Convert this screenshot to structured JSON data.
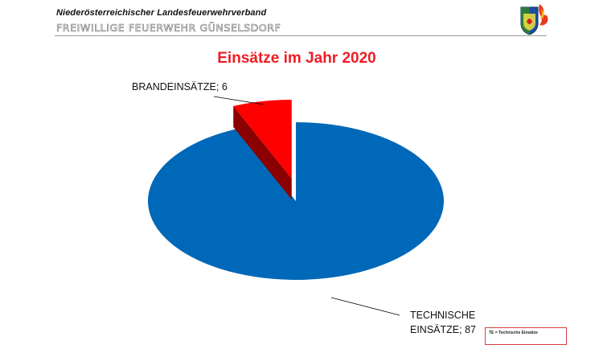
{
  "header": {
    "org_name": "Niederösterreichischer  Landesfeuerwehrverband",
    "dept_name": "Freiwillige Feuerwehr Günselsdorf"
  },
  "colors": {
    "technische": "#0068b8",
    "technische_side": "#063a68",
    "brand": "#ff0000",
    "brand_side": "#8b0000",
    "title": "#ee1c25"
  },
  "note": {
    "text": "TE = Technische  Einsätze"
  },
  "chart_data": {
    "type": "pie",
    "title": "Einsätze im Jahr 2020",
    "slices": [
      {
        "name": "BRANDEINSÄTZE",
        "value": 6,
        "label": "BRANDEINSÄTZE; 6",
        "exploded": true
      },
      {
        "name": "TECHNISCHE EINSÄTZE",
        "value": 87,
        "label_lines": [
          "TECHNISCHE",
          "EINSÄTZE; 87"
        ],
        "exploded": false
      }
    ],
    "legend": "none"
  }
}
